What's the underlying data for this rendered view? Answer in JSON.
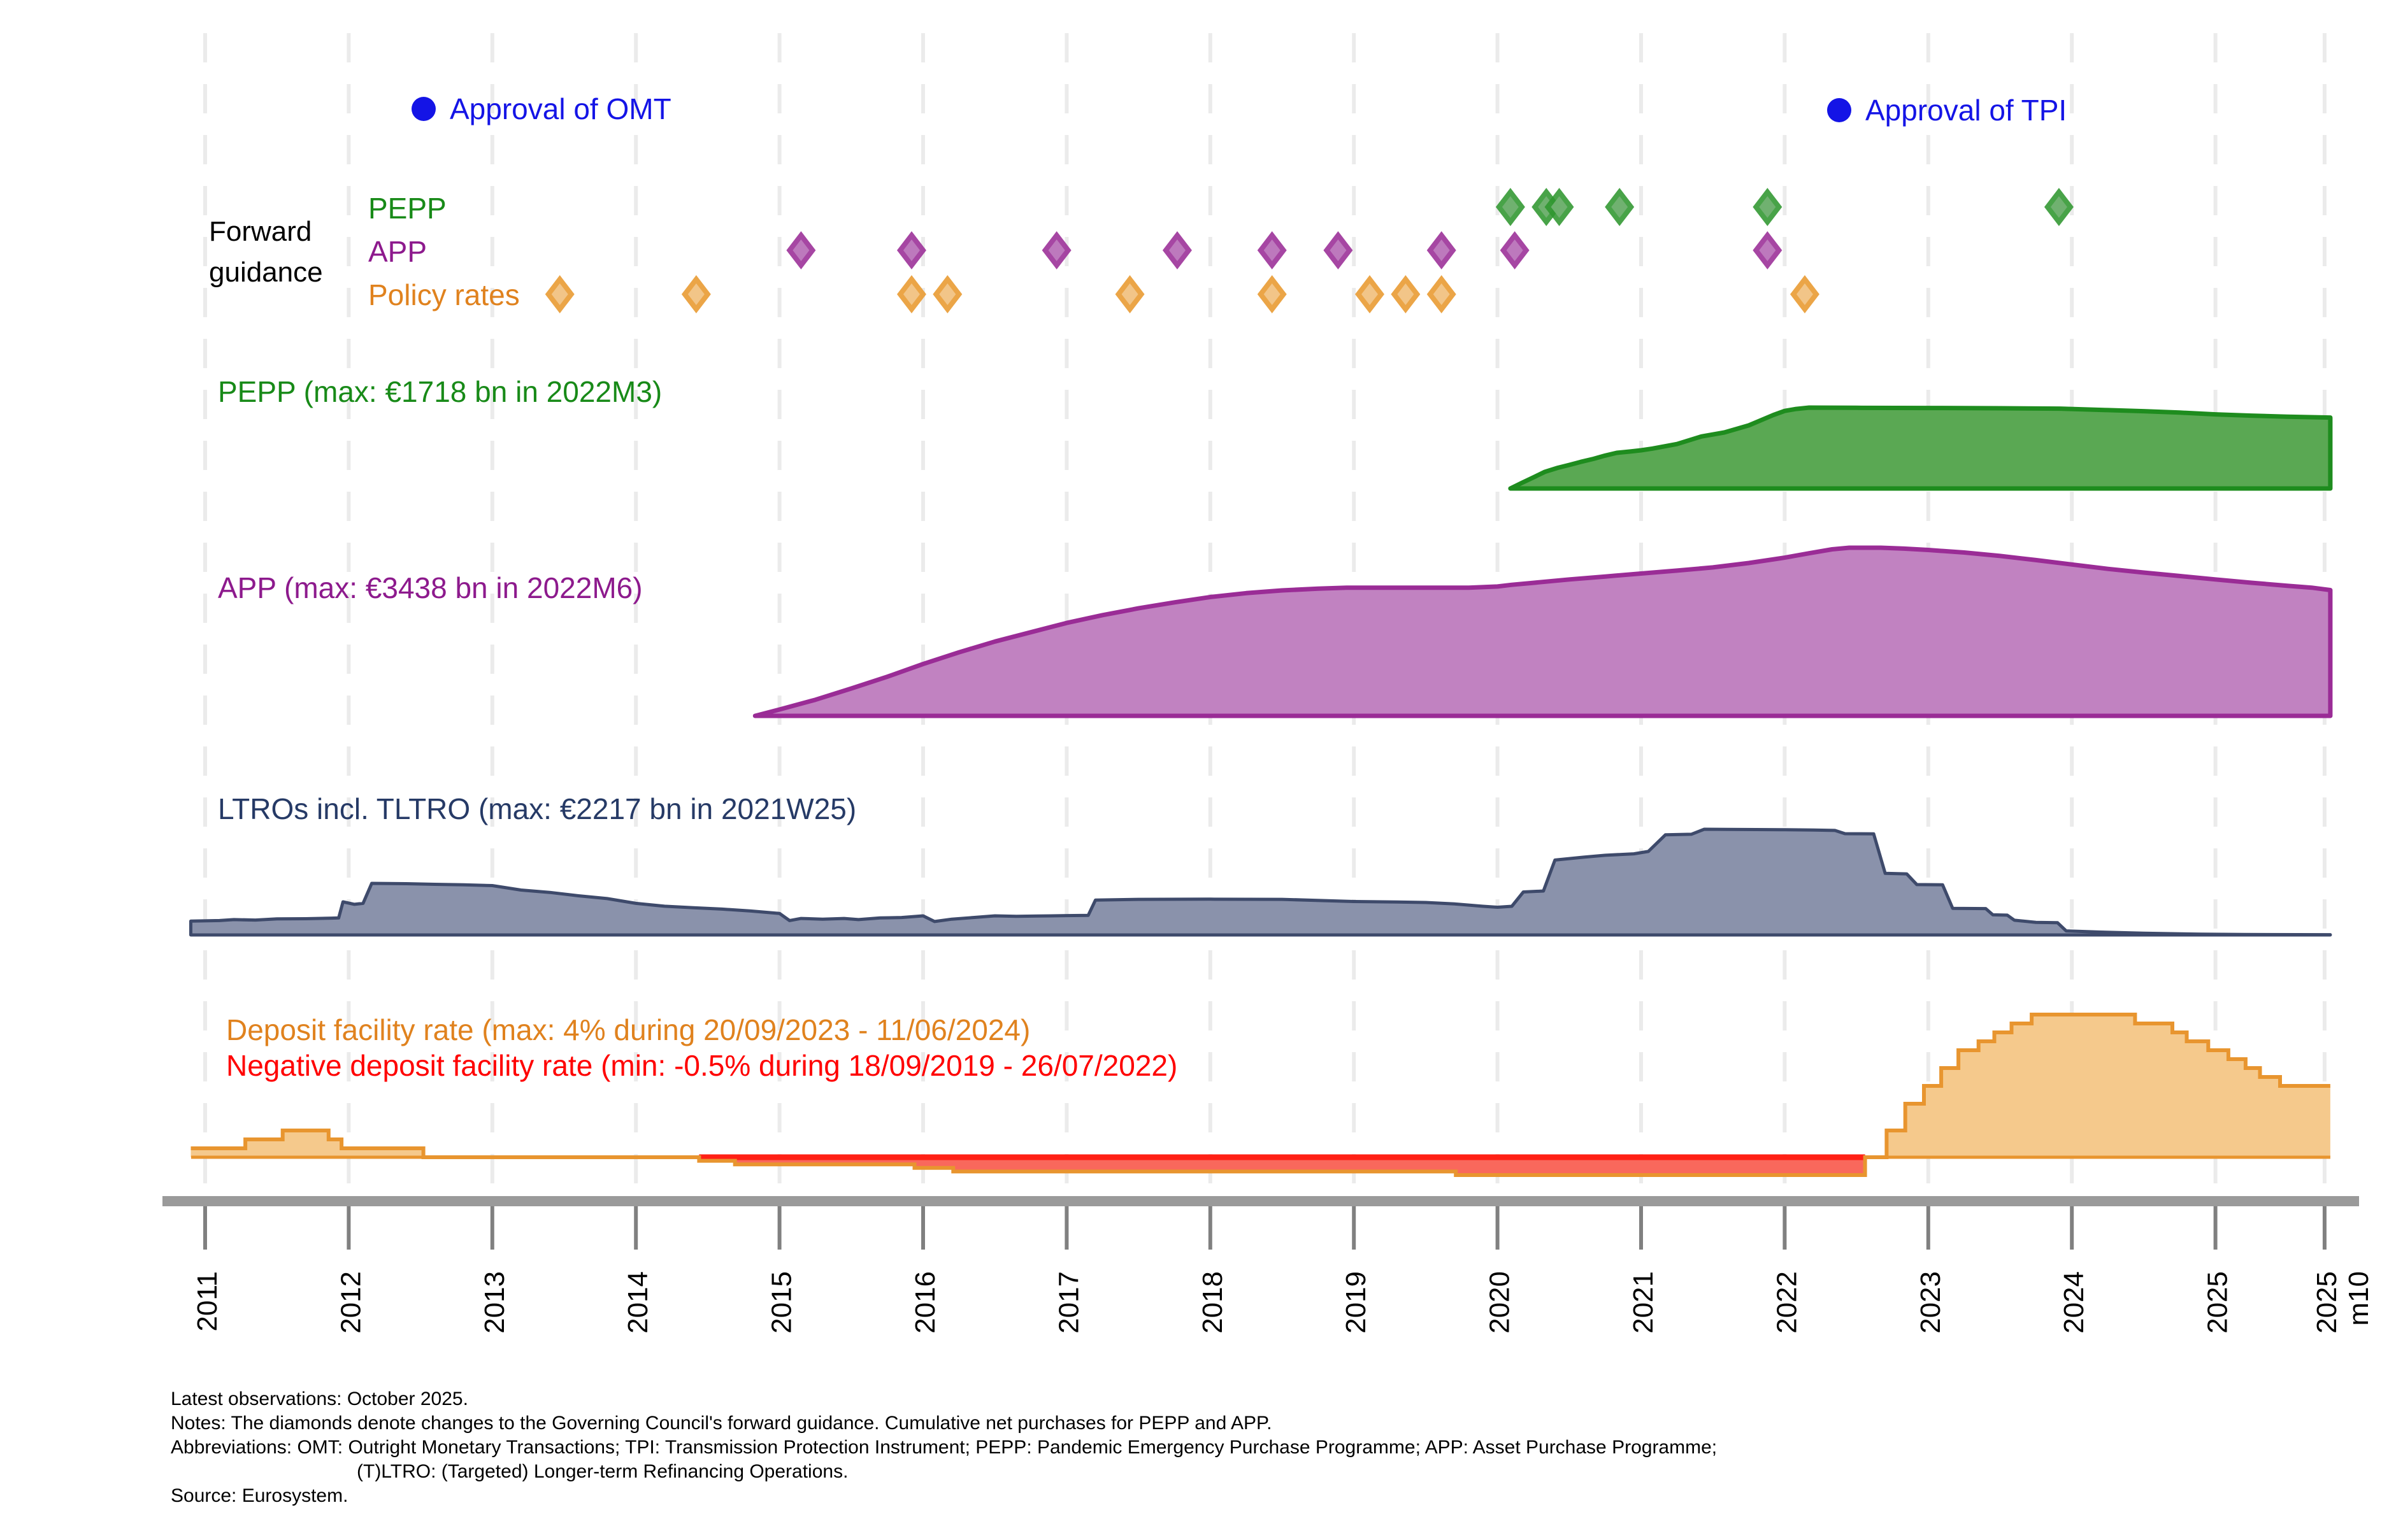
{
  "chart_data": {
    "type": "area",
    "title": "",
    "x_axis": {
      "range": [
        2010.9,
        2025.8
      ],
      "ticks": [
        {
          "label": "2011",
          "year": 2011
        },
        {
          "label": "2012",
          "year": 2012
        },
        {
          "label": "2013",
          "year": 2013
        },
        {
          "label": "2014",
          "year": 2014
        },
        {
          "label": "2015",
          "year": 2015
        },
        {
          "label": "2016",
          "year": 2016
        },
        {
          "label": "2017",
          "year": 2017
        },
        {
          "label": "2018",
          "year": 2018
        },
        {
          "label": "2019",
          "year": 2019
        },
        {
          "label": "2020",
          "year": 2020
        },
        {
          "label": "2021",
          "year": 2021
        },
        {
          "label": "2022",
          "year": 2022
        },
        {
          "label": "2023",
          "year": 2023
        },
        {
          "label": "2024",
          "year": 2024
        },
        {
          "label": "2025",
          "year": 2025
        },
        {
          "label": "2025",
          "label2": "m10",
          "year": 2025.76
        }
      ]
    },
    "legend": {
      "omt": "Approval of OMT",
      "tpi": "Approval of TPI",
      "forward_guidance_line1": "Forward",
      "forward_guidance_line2": "guidance",
      "pepp": "PEPP",
      "app": "APP",
      "policy_rates": "Policy rates"
    },
    "events": {
      "omt_year": 2012.55,
      "tpi_year": 2022.41
    },
    "forward_guidance": {
      "pepp_years": [
        2020.09,
        2020.34,
        2020.43,
        2020.85,
        2021.88,
        2023.91
      ],
      "app_years": [
        2015.15,
        2015.92,
        2016.93,
        2017.77,
        2018.43,
        2018.89,
        2019.61,
        2020.12,
        2021.88
      ],
      "policy_rate_years": [
        2013.47,
        2014.42,
        2015.92,
        2016.17,
        2017.44,
        2018.43,
        2019.11,
        2019.36,
        2019.61,
        2022.14
      ]
    },
    "series": {
      "pepp": {
        "title": "PEPP (max: €1718 bn in 2022M3)",
        "unit": "EUR bn",
        "max_value": 1718,
        "max_period": "2022M3",
        "points": [
          [
            2020.09,
            0
          ],
          [
            2020.17,
            120
          ],
          [
            2020.25,
            235
          ],
          [
            2020.33,
            355
          ],
          [
            2020.42,
            440
          ],
          [
            2020.5,
            500
          ],
          [
            2020.58,
            566
          ],
          [
            2020.67,
            630
          ],
          [
            2020.75,
            700
          ],
          [
            2020.83,
            757
          ],
          [
            2020.92,
            785
          ],
          [
            2021.0,
            812
          ],
          [
            2021.08,
            848
          ],
          [
            2021.25,
            944
          ],
          [
            2021.42,
            1105
          ],
          [
            2021.58,
            1190
          ],
          [
            2021.75,
            1340
          ],
          [
            2021.92,
            1560
          ],
          [
            2022.0,
            1648
          ],
          [
            2022.08,
            1690
          ],
          [
            2022.17,
            1718
          ],
          [
            2022.5,
            1714
          ],
          [
            2023.0,
            1710
          ],
          [
            2023.5,
            1705
          ],
          [
            2023.92,
            1696
          ],
          [
            2024.25,
            1665
          ],
          [
            2024.5,
            1642
          ],
          [
            2024.75,
            1612
          ],
          [
            2025.0,
            1575
          ],
          [
            2025.25,
            1547
          ],
          [
            2025.5,
            1524
          ],
          [
            2025.8,
            1507
          ]
        ]
      },
      "app": {
        "title": "APP (max: €3438 bn in 2022M6)",
        "unit": "EUR bn",
        "max_value": 3438,
        "max_period": "2022M6",
        "points": [
          [
            2014.83,
            0
          ],
          [
            2015.0,
            130
          ],
          [
            2015.25,
            330
          ],
          [
            2015.5,
            560
          ],
          [
            2015.75,
            800
          ],
          [
            2016.0,
            1060
          ],
          [
            2016.25,
            1300
          ],
          [
            2016.5,
            1520
          ],
          [
            2016.75,
            1710
          ],
          [
            2017.0,
            1900
          ],
          [
            2017.25,
            2060
          ],
          [
            2017.5,
            2200
          ],
          [
            2017.75,
            2320
          ],
          [
            2018.0,
            2430
          ],
          [
            2018.25,
            2510
          ],
          [
            2018.5,
            2565
          ],
          [
            2018.75,
            2600
          ],
          [
            2018.95,
            2620
          ],
          [
            2019.8,
            2620
          ],
          [
            2020.0,
            2645
          ],
          [
            2020.1,
            2680
          ],
          [
            2020.25,
            2720
          ],
          [
            2020.5,
            2790
          ],
          [
            2020.75,
            2850
          ],
          [
            2021.0,
            2910
          ],
          [
            2021.25,
            2970
          ],
          [
            2021.5,
            3035
          ],
          [
            2021.75,
            3125
          ],
          [
            2022.0,
            3235
          ],
          [
            2022.17,
            3325
          ],
          [
            2022.33,
            3405
          ],
          [
            2022.45,
            3438
          ],
          [
            2022.67,
            3438
          ],
          [
            2022.83,
            3420
          ],
          [
            2023.0,
            3392
          ],
          [
            2023.25,
            3340
          ],
          [
            2023.5,
            3270
          ],
          [
            2023.75,
            3185
          ],
          [
            2024.0,
            3095
          ],
          [
            2024.25,
            3005
          ],
          [
            2024.5,
            2930
          ],
          [
            2024.75,
            2860
          ],
          [
            2025.0,
            2790
          ],
          [
            2025.25,
            2722
          ],
          [
            2025.5,
            2660
          ],
          [
            2025.67,
            2622
          ],
          [
            2025.8,
            2572
          ]
        ]
      },
      "ltro": {
        "title": "LTROs incl. TLTRO (max: €2217 bn in 2021W25)",
        "unit": "EUR bn",
        "max_value": 2217,
        "max_period": "2021W25",
        "points": [
          [
            2010.9,
            290
          ],
          [
            2011.1,
            302
          ],
          [
            2011.2,
            322
          ],
          [
            2011.35,
            312
          ],
          [
            2011.5,
            336
          ],
          [
            2011.7,
            340
          ],
          [
            2011.88,
            352
          ],
          [
            2011.93,
            356
          ],
          [
            2011.96,
            695
          ],
          [
            2012.04,
            642
          ],
          [
            2012.1,
            662
          ],
          [
            2012.16,
            1082
          ],
          [
            2012.4,
            1075
          ],
          [
            2012.6,
            1062
          ],
          [
            2012.8,
            1052
          ],
          [
            2013.0,
            1035
          ],
          [
            2013.2,
            942
          ],
          [
            2013.4,
            892
          ],
          [
            2013.6,
            822
          ],
          [
            2013.8,
            762
          ],
          [
            2014.0,
            662
          ],
          [
            2014.2,
            602
          ],
          [
            2014.4,
            572
          ],
          [
            2014.6,
            542
          ],
          [
            2014.8,
            502
          ],
          [
            2015.0,
            452
          ],
          [
            2015.07,
            302
          ],
          [
            2015.15,
            346
          ],
          [
            2015.3,
            331
          ],
          [
            2015.45,
            346
          ],
          [
            2015.55,
            322
          ],
          [
            2015.7,
            356
          ],
          [
            2015.85,
            366
          ],
          [
            2016.0,
            401
          ],
          [
            2016.08,
            282
          ],
          [
            2016.2,
            331
          ],
          [
            2016.35,
            366
          ],
          [
            2016.5,
            401
          ],
          [
            2016.65,
            391
          ],
          [
            2016.8,
            396
          ],
          [
            2017.0,
            406
          ],
          [
            2017.15,
            411
          ],
          [
            2017.2,
            731
          ],
          [
            2017.5,
            746
          ],
          [
            2018.0,
            751
          ],
          [
            2018.5,
            746
          ],
          [
            2019.0,
            701
          ],
          [
            2019.3,
            691
          ],
          [
            2019.5,
            681
          ],
          [
            2019.7,
            651
          ],
          [
            2019.9,
            601
          ],
          [
            2020.0,
            581
          ],
          [
            2020.1,
            601
          ],
          [
            2020.18,
            901
          ],
          [
            2020.32,
            921
          ],
          [
            2020.4,
            1571
          ],
          [
            2020.6,
            1631
          ],
          [
            2020.75,
            1671
          ],
          [
            2020.95,
            1701
          ],
          [
            2021.05,
            1751
          ],
          [
            2021.17,
            2101
          ],
          [
            2021.35,
            2111
          ],
          [
            2021.44,
            2217
          ],
          [
            2021.6,
            2214
          ],
          [
            2021.8,
            2210
          ],
          [
            2022.0,
            2206
          ],
          [
            2022.2,
            2201
          ],
          [
            2022.35,
            2191
          ],
          [
            2022.42,
            2124
          ],
          [
            2022.62,
            2119
          ],
          [
            2022.7,
            1291
          ],
          [
            2022.85,
            1281
          ],
          [
            2022.92,
            1056
          ],
          [
            2023.1,
            1051
          ],
          [
            2023.17,
            558
          ],
          [
            2023.4,
            553
          ],
          [
            2023.45,
            422
          ],
          [
            2023.55,
            416
          ],
          [
            2023.6,
            309
          ],
          [
            2023.75,
            264
          ],
          [
            2023.9,
            256
          ],
          [
            2023.96,
            86
          ],
          [
            2024.2,
            60
          ],
          [
            2024.5,
            36
          ],
          [
            2024.9,
            16
          ],
          [
            2025.2,
            9
          ],
          [
            2025.8,
            5
          ]
        ]
      },
      "dfr": {
        "title_max": "Deposit facility rate (max: 4% during 20/09/2023 - 11/06/2024)",
        "title_min": "Negative deposit facility rate (min: -0.5% during 18/09/2019 - 26/07/2022)",
        "unit": "%",
        "max_value": 4,
        "min_value": -0.5,
        "negative_span": [
          2014.44,
          2022.56
        ],
        "end_year": 2025.8,
        "steps": [
          [
            2010.9,
            0.25
          ],
          [
            2011.28,
            0.5
          ],
          [
            2011.54,
            0.75
          ],
          [
            2011.86,
            0.5
          ],
          [
            2011.95,
            0.25
          ],
          [
            2012.52,
            0
          ],
          [
            2014.44,
            -0.1
          ],
          [
            2014.69,
            -0.2
          ],
          [
            2015.94,
            -0.3
          ],
          [
            2016.21,
            -0.4
          ],
          [
            2019.71,
            -0.5
          ],
          [
            2022.56,
            0
          ],
          [
            2022.71,
            0.75
          ],
          [
            2022.84,
            1.5
          ],
          [
            2022.97,
            2
          ],
          [
            2023.09,
            2.5
          ],
          [
            2023.21,
            3
          ],
          [
            2023.35,
            3.25
          ],
          [
            2023.46,
            3.5
          ],
          [
            2023.58,
            3.75
          ],
          [
            2023.72,
            4
          ],
          [
            2024.44,
            3.75
          ],
          [
            2024.7,
            3.5
          ],
          [
            2024.8,
            3.25
          ],
          [
            2024.95,
            3
          ],
          [
            2025.09,
            2.75
          ],
          [
            2025.21,
            2.5
          ],
          [
            2025.31,
            2.25
          ],
          [
            2025.45,
            2
          ]
        ]
      }
    },
    "colors": {
      "event_blue": "#1414e6",
      "pepp_fill": "#5aa853",
      "pepp_stroke": "#1e8c1e",
      "pepp_text": "#188a18",
      "app_fill": "#c182c1",
      "app_stroke": "#9a2c96",
      "app_text": "#8d1a8d",
      "ltro_fill": "#8a92ab",
      "ltro_stroke": "#3e4a6b",
      "ltro_text": "#263a66",
      "dfr_fill": "#f5c98c",
      "dfr_stroke": "#e8952f",
      "dfr_text": "#e0821e",
      "neg_fill": "#f9685c",
      "neg_line": "#ff2015",
      "neg_text": "#ff0000",
      "diamond_green_outer": "#2f962f",
      "diamond_green_inner": "#74b274",
      "diamond_purple_outer": "#9a2c96",
      "diamond_purple_inner": "#c07ec0",
      "diamond_orange_outer": "#e8992e",
      "diamond_orange_inner": "#f3c98f",
      "grid": "#ebebeb",
      "axis": "#9a9a9a",
      "tick": "#808080",
      "text": "#000000"
    }
  },
  "notes": {
    "line1": "Latest observations: October 2025.",
    "line2": "Notes: The diamonds denote changes to the Governing Council's forward guidance. Cumulative net purchases for PEPP and APP.",
    "line3": "Abbreviations: OMT: Outright Monetary Transactions; TPI: Transmission Protection Instrument; PEPP: Pandemic Emergency Purchase Programme; APP: Asset Purchase Programme;",
    "line4": "(T)LTRO: (Targeted) Longer-term Refinancing Operations.",
    "line5": "Source: Eurosystem."
  }
}
